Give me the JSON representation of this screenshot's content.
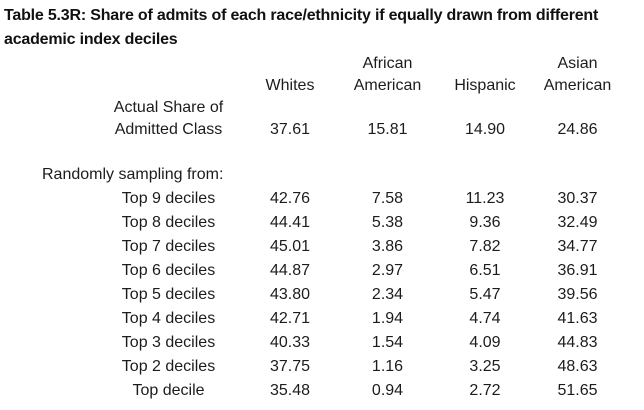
{
  "page": {
    "title": "Table 5.3R: Share of admits of each race/ethnicity if equally drawn from different academic index deciles"
  },
  "table": {
    "columns": [
      {
        "header_top": "",
        "header_bottom": "Whites"
      },
      {
        "header_top": "African",
        "header_bottom": "American"
      },
      {
        "header_top": "",
        "header_bottom": "Hispanic"
      },
      {
        "header_top": "Asian",
        "header_bottom": "American"
      }
    ],
    "actual_share": {
      "label_line1": "Actual Share of",
      "label_line2": "Admitted Class",
      "values": [
        "37.61",
        "15.81",
        "14.90",
        "24.86"
      ]
    },
    "section_label": "Randomly sampling from:",
    "rows": [
      {
        "label": "Top 9 deciles",
        "values": [
          "42.76",
          "7.58",
          "11.23",
          "30.37"
        ]
      },
      {
        "label": "Top 8 deciles",
        "values": [
          "44.41",
          "5.38",
          "9.36",
          "32.49"
        ]
      },
      {
        "label": "Top 7 deciles",
        "values": [
          "45.01",
          "3.86",
          "7.82",
          "34.77"
        ]
      },
      {
        "label": "Top 6 deciles",
        "values": [
          "44.87",
          "2.97",
          "6.51",
          "36.91"
        ]
      },
      {
        "label": "Top 5 deciles",
        "values": [
          "43.80",
          "2.34",
          "5.47",
          "39.56"
        ]
      },
      {
        "label": "Top 4 deciles",
        "values": [
          "42.71",
          "1.94",
          "4.74",
          "41.63"
        ]
      },
      {
        "label": "Top 3 deciles",
        "values": [
          "40.33",
          "1.54",
          "4.09",
          "44.83"
        ]
      },
      {
        "label": "Top 2 deciles",
        "values": [
          "37.75",
          "1.16",
          "3.25",
          "48.63"
        ]
      },
      {
        "label": "Top decile",
        "values": [
          "35.48",
          "0.94",
          "2.72",
          "51.65"
        ]
      }
    ]
  }
}
